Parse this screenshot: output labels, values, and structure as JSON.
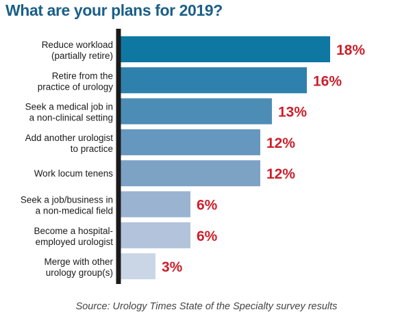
{
  "chart_data": {
    "type": "bar",
    "orientation": "horizontal",
    "title": "What are your plans for 2019?",
    "categories": [
      [
        "Reduce workload",
        "(partially retire)"
      ],
      [
        "Retire from the",
        "practice of urology"
      ],
      [
        "Seek a medical job in",
        "a non-clinical setting"
      ],
      [
        "Add another urologist",
        "to practice"
      ],
      [
        "Work locum tenens"
      ],
      [
        "Seek a job/business in",
        "a non-medical field"
      ],
      [
        "Become a hospital-",
        "employed urologist"
      ],
      [
        "Merge with other",
        "urology group(s)"
      ]
    ],
    "values": [
      18,
      16,
      13,
      12,
      12,
      6,
      6,
      3
    ],
    "value_labels": [
      "18%",
      "16%",
      "13%",
      "12%",
      "12%",
      "6%",
      "6%",
      "3%"
    ],
    "unit": "%",
    "xlim": [
      0,
      18
    ],
    "xlabel": "",
    "ylabel": "",
    "grid": false,
    "source": "Source: Urology Times State of the Specialty survey results",
    "colors": {
      "title": "#1a5f88",
      "value_label": "#cc1f2b",
      "axis": "#1a1a1a",
      "bars": [
        "#0f78a2",
        "#2f81ad",
        "#4c8db6",
        "#6697bf",
        "#7ca3c4",
        "#9ab3d1",
        "#b2c3db",
        "#cad6e6"
      ]
    }
  }
}
